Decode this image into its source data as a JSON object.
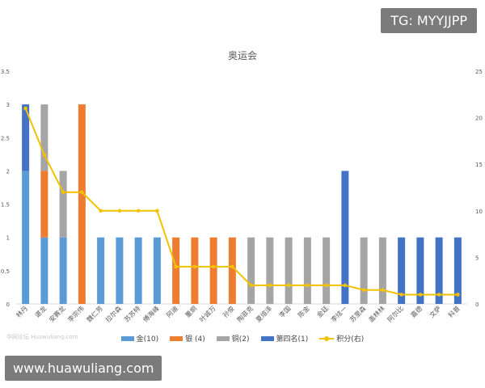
{
  "chart_data": {
    "type": "bar",
    "title": "奥运会",
    "categories": [
      "林丹",
      "谌龙",
      "安赛龙",
      "李宗伟",
      "魏仁芳",
      "拉尔森",
      "苏苏特",
      "傅海峰",
      "阿迪",
      "董炯",
      "叶诚万",
      "孙俊",
      "陶菲克",
      "夏煊泽",
      "李国",
      "陈金",
      "金廷",
      "李炫一",
      "苏里森",
      "盖林林",
      "阿尔比",
      "嘉德",
      "文萨",
      "科普"
    ],
    "series": [
      {
        "name": "金(10)",
        "color": "#5b9bd5",
        "axis": "left",
        "values": [
          2,
          1,
          1,
          0,
          1,
          1,
          1,
          1,
          0,
          0,
          0,
          0,
          0,
          0,
          0,
          0,
          0,
          0,
          0,
          0,
          0,
          0,
          0,
          0
        ]
      },
      {
        "name": "银 (4)",
        "color": "#ed7d31",
        "axis": "left",
        "values": [
          0,
          1,
          0,
          3,
          0,
          0,
          0,
          0,
          1,
          1,
          1,
          1,
          0,
          0,
          0,
          0,
          0,
          0,
          0,
          0,
          0,
          0,
          0,
          0
        ]
      },
      {
        "name": "铜(2)",
        "color": "#a5a5a5",
        "axis": "left",
        "values": [
          0,
          1,
          1,
          0,
          0,
          0,
          0,
          0,
          0,
          0,
          0,
          0,
          1,
          1,
          1,
          1,
          1,
          0,
          1,
          1,
          0,
          0,
          0,
          0
        ]
      },
      {
        "name": "第四名(1)",
        "color": "#4472c4",
        "axis": "left",
        "values": [
          1,
          0,
          0,
          0,
          0,
          0,
          0,
          0,
          0,
          0,
          0,
          0,
          0,
          0,
          0,
          0,
          0,
          2,
          0,
          0,
          1,
          1,
          1,
          1
        ]
      },
      {
        "name": "积分(右)",
        "color": "#f2c200",
        "axis": "right",
        "type": "line",
        "values": [
          21,
          16,
          12,
          12,
          10,
          10,
          10,
          10,
          4,
          4,
          4,
          4,
          2,
          2,
          2,
          2,
          2,
          2,
          1.5,
          1.5,
          1,
          1,
          1,
          1
        ]
      }
    ],
    "y_left": {
      "min": 0,
      "max": 3.5,
      "ticks": [
        "0",
        "0.5",
        "1",
        "1.5",
        "2",
        "2.5",
        "3",
        "3.5"
      ]
    },
    "y_right": {
      "min": 0,
      "max": 25,
      "ticks": [
        "0",
        "5",
        "10",
        "15",
        "20",
        "25"
      ]
    },
    "grid": false,
    "legend_position": "bottom"
  },
  "watermark": "华网论坛 Huawuliang.com",
  "tg_badge": "TG: MYYJJPP",
  "site_banner": "www.huawuliang.com"
}
